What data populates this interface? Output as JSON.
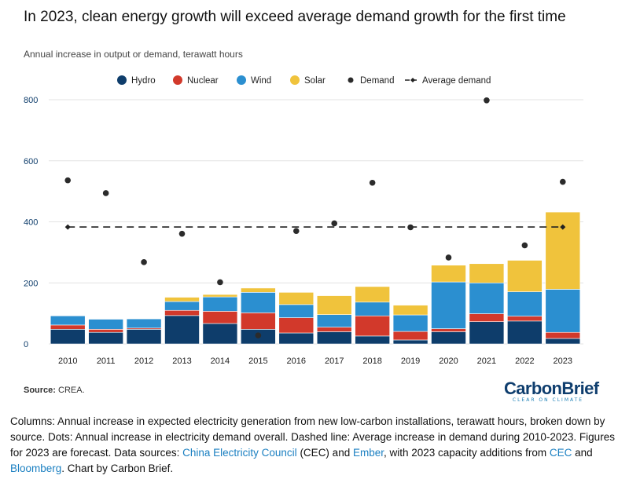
{
  "header": {
    "title": "In 2023, clean energy growth will exceed average demand growth for the first time",
    "subtitle": "Annual increase in output or demand, terawatt hours"
  },
  "colors": {
    "hydro": "#0e3d6b",
    "nuclear": "#d2392b",
    "wind": "#2b8fd0",
    "solar": "#f0c33c",
    "demand": "#2b2b2b",
    "gridline": "#e3e3e3",
    "axis_label": "#0e3d6b"
  },
  "source": {
    "label": "Source:",
    "text": "CREA."
  },
  "logo": {
    "brand": "CarbonBrief",
    "tagline": "CLEAR ON CLIMATE"
  },
  "caption": {
    "part1": "Columns: Annual increase in expected electricity generation from new low-carbon installations, terawatt hours, broken down by source. Dots: Annual increase in electricity demand overall. Dashed line: Average increase in demand during 2010-2023. Figures for 2023 are forecast. Data sources: ",
    "link1": "China Electricity Council",
    "part2": " (CEC) and ",
    "link2": "Ember",
    "part3": ", with 2023 capacity additions from ",
    "link3": "CEC",
    "part4": " and ",
    "link4": "Bloomberg",
    "part5": ". Chart by Carbon Brief."
  },
  "chart_data": {
    "type": "bar",
    "stacked": true,
    "categories": [
      "2010",
      "2011",
      "2012",
      "2013",
      "2014",
      "2015",
      "2016",
      "2017",
      "2018",
      "2019",
      "2020",
      "2021",
      "2022",
      "2023"
    ],
    "series": [
      {
        "name": "Hydro",
        "key": "hydro",
        "values": [
          48,
          38,
          48,
          93,
          67,
          48,
          36,
          40,
          26,
          13,
          40,
          73,
          75,
          18
        ]
      },
      {
        "name": "Nuclear",
        "key": "nuclear",
        "values": [
          14,
          10,
          4,
          17,
          40,
          54,
          50,
          15,
          66,
          28,
          10,
          26,
          16,
          20
        ]
      },
      {
        "name": "Wind",
        "key": "wind",
        "values": [
          30,
          33,
          30,
          29,
          47,
          67,
          43,
          41,
          45,
          54,
          153,
          101,
          80,
          141
        ]
      },
      {
        "name": "Solar",
        "key": "solar",
        "values": [
          0,
          0,
          0,
          14,
          8,
          14,
          40,
          62,
          51,
          32,
          55,
          63,
          103,
          253
        ]
      }
    ],
    "demand": {
      "name": "Demand",
      "values": [
        536,
        494,
        268,
        361,
        202,
        28,
        370,
        395,
        528,
        382,
        283,
        798,
        323,
        531
      ]
    },
    "average_demand": {
      "name": "Average demand",
      "value": 383
    },
    "ylim": [
      0,
      800
    ],
    "yticks": [
      0,
      200,
      400,
      600,
      800
    ],
    "grid": true,
    "legend": {
      "placement": "top",
      "items": [
        {
          "label": "Hydro",
          "kind": "dot",
          "key": "hydro"
        },
        {
          "label": "Nuclear",
          "kind": "dot",
          "key": "nuclear"
        },
        {
          "label": "Wind",
          "kind": "dot",
          "key": "wind"
        },
        {
          "label": "Solar",
          "kind": "dot",
          "key": "solar"
        },
        {
          "label": "Demand",
          "kind": "small-dot",
          "key": "demand"
        },
        {
          "label": "Average demand",
          "kind": "dashed-line",
          "key": "demand"
        }
      ]
    }
  }
}
